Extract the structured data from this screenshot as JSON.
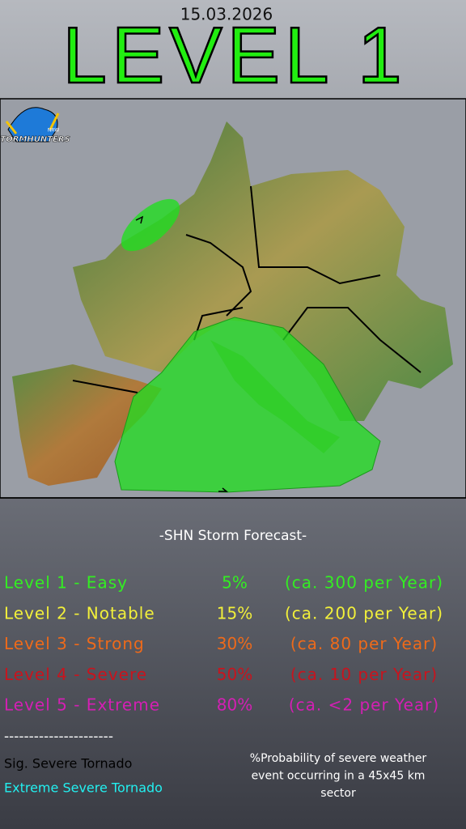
{
  "header": {
    "date": "15.03.2026",
    "title": "LEVEL 1"
  },
  "logo": {
    "name": "STORMHUNTERS",
    "region": "NRW"
  },
  "forecast": {
    "subtitle": "-SHN Storm Forecast-",
    "levels": [
      {
        "name": "Level 1 - Easy",
        "probability": "5%",
        "frequency": "(ca. 300 per Year)",
        "color": "#33ee22"
      },
      {
        "name": "Level 2 - Notable",
        "probability": "15%",
        "frequency": "(ca. 200 per Year)",
        "color": "#f2f03a"
      },
      {
        "name": "Level 3 - Strong",
        "probability": "30%",
        "frequency": "(ca. 80 per Year)",
        "color": "#ee6a1a"
      },
      {
        "name": "Level 4 - Severe",
        "probability": "50%",
        "frequency": "(ca. 10 per Year)",
        "color": "#c8141e"
      },
      {
        "name": "Level 5 - Extreme",
        "probability": "80%",
        "frequency": "(ca.  <2 per Year)",
        "color": "#d41fb4"
      }
    ],
    "separator": "----------------------",
    "sig_tornado": "Sig. Severe Tornado",
    "extreme_tornado": "Extreme Severe Tornado",
    "note": [
      "%Probability of severe weather",
      "event occurring in a 45x45 km",
      "sector"
    ]
  }
}
